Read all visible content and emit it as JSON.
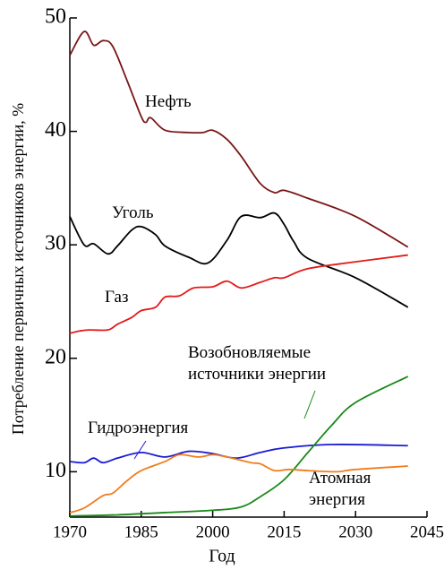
{
  "chart_data": {
    "type": "line",
    "x_label": "Год",
    "y_label": "Потребление первичных источников энергии, %",
    "xlim": [
      1970,
      2045
    ],
    "xticks": [
      1970,
      1985,
      2000,
      2015,
      2030,
      2045
    ],
    "ylim": [
      6,
      50
    ],
    "yticks": [
      10,
      20,
      30,
      40,
      50
    ],
    "series": [
      {
        "name": "Нефть",
        "color": "#7a1616",
        "x": [
          1970,
          1973,
          1975,
          1977,
          1979,
          1982,
          1985,
          1986,
          1987,
          1990,
          1995,
          1998,
          2000,
          2003,
          2006,
          2010,
          2013,
          2015,
          2020,
          2030,
          2041
        ],
        "values": [
          46.7,
          48.8,
          47.6,
          48.0,
          47.5,
          44.5,
          41.3,
          40.8,
          41.2,
          40.1,
          39.9,
          39.9,
          40.1,
          39.3,
          37.8,
          35.4,
          34.6,
          34.8,
          34.1,
          32.5,
          29.8
        ]
      },
      {
        "name": "Уголь",
        "color": "#000000",
        "x": [
          1970,
          1973,
          1975,
          1978,
          1980,
          1983,
          1985,
          1988,
          1990,
          1995,
          1999,
          2003,
          2006,
          2010,
          2013,
          2015,
          2017,
          2020,
          2030,
          2041
        ],
        "values": [
          32.5,
          30.0,
          30.1,
          29.2,
          29.9,
          31.3,
          31.6,
          30.9,
          29.9,
          28.9,
          28.4,
          30.4,
          32.5,
          32.4,
          32.8,
          31.8,
          30.3,
          28.8,
          27.1,
          24.5
        ]
      },
      {
        "name": "Газ",
        "color": "#e31a1a",
        "x": [
          1970,
          1972,
          1974,
          1978,
          1980,
          1983,
          1985,
          1988,
          1990,
          1993,
          1996,
          2000,
          2003,
          2006,
          2010,
          2013,
          2015,
          2020,
          2030,
          2041
        ],
        "values": [
          22.2,
          22.4,
          22.5,
          22.5,
          23.0,
          23.6,
          24.2,
          24.5,
          25.4,
          25.5,
          26.2,
          26.3,
          26.8,
          26.2,
          26.7,
          27.1,
          27.1,
          27.9,
          28.5,
          29.1
        ]
      },
      {
        "name": "Гидроэнергия",
        "color": "#1a1ad4",
        "x": [
          1970,
          1973,
          1975,
          1977,
          1980,
          1985,
          1990,
          1995,
          2000,
          2005,
          2010,
          2015,
          2025,
          2041
        ],
        "values": [
          10.9,
          10.8,
          11.2,
          10.8,
          11.2,
          11.7,
          11.3,
          11.8,
          11.6,
          11.2,
          11.7,
          12.1,
          12.4,
          12.3
        ]
      },
      {
        "name": "Возобновляемые источники энергии",
        "color": "#178a17",
        "x": [
          1970,
          1980,
          1990,
          2000,
          2006,
          2010,
          2015,
          2020,
          2025,
          2030,
          2041
        ],
        "values": [
          6.1,
          6.2,
          6.4,
          6.6,
          6.9,
          7.8,
          9.3,
          11.7,
          14.1,
          16.1,
          18.4
        ]
      },
      {
        "name": "Атомная энергия",
        "color": "#f07d1e",
        "x": [
          1970,
          1973,
          1977,
          1979,
          1982,
          1985,
          1990,
          1993,
          1997,
          2000,
          2003,
          2008,
          2010,
          2013,
          2016,
          2020,
          2026,
          2030,
          2041
        ],
        "values": [
          6.4,
          6.8,
          7.9,
          8.1,
          9.2,
          10.1,
          10.9,
          11.5,
          11.3,
          11.5,
          11.3,
          10.8,
          10.7,
          10.1,
          10.2,
          10.1,
          10.0,
          10.2,
          10.5
        ]
      }
    ]
  }
}
